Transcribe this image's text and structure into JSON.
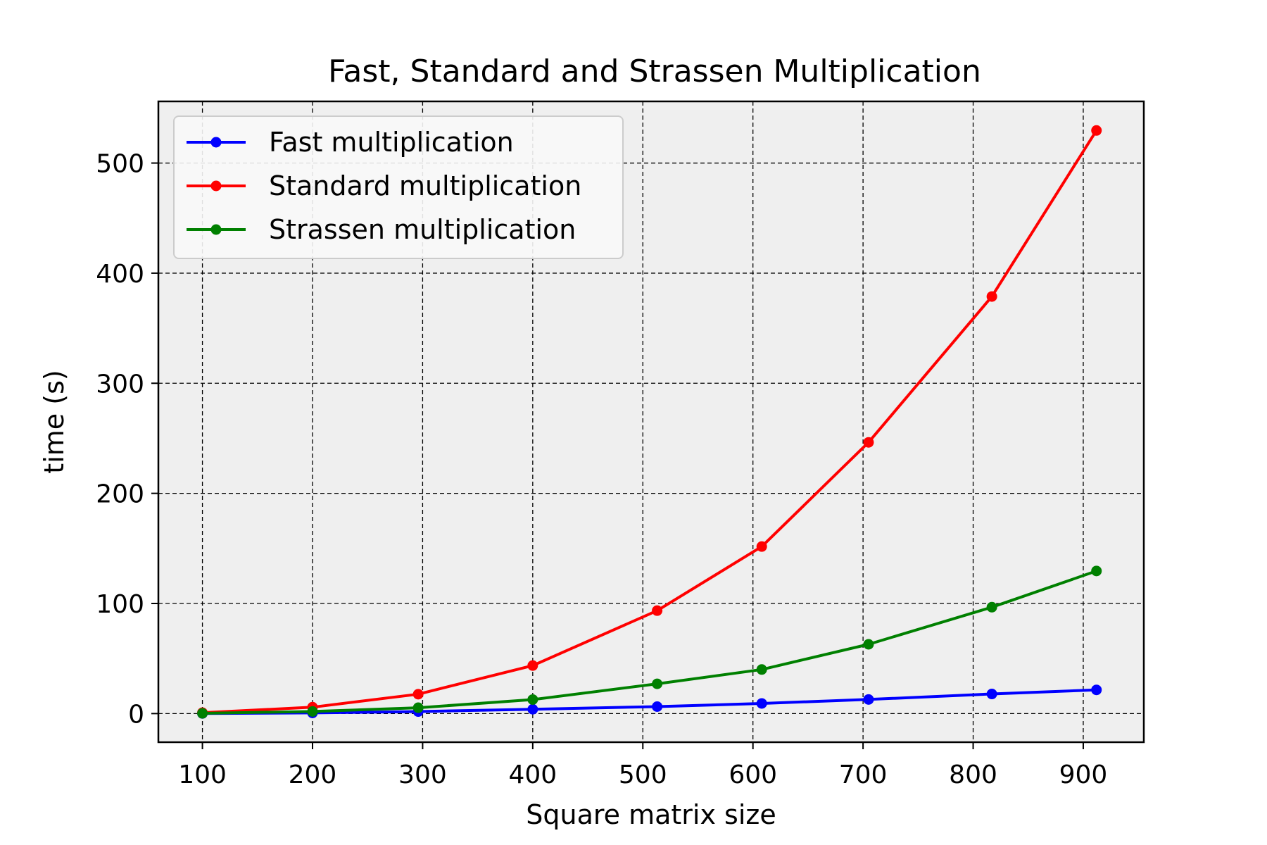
{
  "chart_data": {
    "type": "line",
    "title": "Fast, Standard and Strassen Multiplication",
    "xlabel": "Square matrix size",
    "ylabel": "time (s)",
    "xlim": [
      60,
      955
    ],
    "ylim": [
      -26,
      556
    ],
    "xticks": [
      100,
      200,
      300,
      400,
      500,
      600,
      700,
      800,
      900
    ],
    "yticks": [
      0,
      100,
      200,
      300,
      400,
      500
    ],
    "grid": true,
    "legend_position": "upper-left",
    "background": "#efefef",
    "series": [
      {
        "name": "Fast multiplication",
        "color": "#0000ff",
        "x": [
          100,
          200,
          296,
          400,
          513,
          608,
          705,
          817,
          912
        ],
        "y": [
          0.1,
          0.6,
          1.8,
          3.9,
          6.3,
          9.2,
          12.8,
          17.8,
          21.5
        ]
      },
      {
        "name": "Standard multiplication",
        "color": "#ff0000",
        "x": [
          100,
          200,
          296,
          400,
          513,
          608,
          705,
          817,
          912
        ],
        "y": [
          0.8,
          5.8,
          17.6,
          43.6,
          93.5,
          151.7,
          246.3,
          378.8,
          529.6
        ]
      },
      {
        "name": "Strassen multiplication",
        "color": "#008000",
        "x": [
          100,
          200,
          296,
          400,
          513,
          608,
          705,
          817,
          912
        ],
        "y": [
          0.2,
          1.9,
          5.3,
          12.7,
          27.0,
          40.0,
          62.9,
          96.6,
          129.5
        ]
      }
    ]
  }
}
